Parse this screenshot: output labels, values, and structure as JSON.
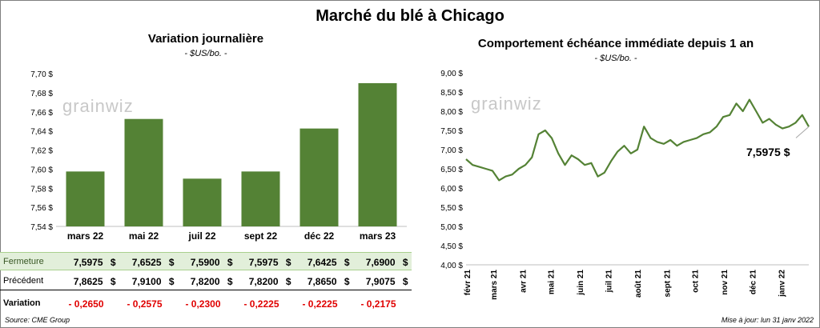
{
  "page": {
    "title": "Marché du blé à Chicago",
    "source": "Source: CME Group",
    "updated": "Mise à jour: lun 31 janv 2022"
  },
  "chart_data": [
    {
      "type": "bar",
      "title": "Variation  journalière",
      "subtitle": "- $US/bo. -",
      "watermark": "grainwiz",
      "categories": [
        "mars 22",
        "mai 22",
        "juil 22",
        "sept 22",
        "déc 22",
        "mars 23"
      ],
      "values": [
        7.5975,
        7.6525,
        7.59,
        7.5975,
        7.6425,
        7.69
      ],
      "ylim": [
        7.54,
        7.7
      ],
      "yticks": [
        "7,54 $",
        "7,56 $",
        "7,58 $",
        "7,60 $",
        "7,62 $",
        "7,64 $",
        "7,66 $",
        "7,68 $",
        "7,70 $"
      ],
      "bar_color": "#548235",
      "grid": false,
      "table": {
        "rows": [
          {
            "label": "Fermeture",
            "values": [
              "7,5975",
              "7,6525",
              "7,5900",
              "7,5975",
              "7,6425",
              "7,6900"
            ],
            "unit": "$"
          },
          {
            "label": "Précédent",
            "values": [
              "7,8625",
              "7,9100",
              "7,8200",
              "7,8200",
              "7,8650",
              "7,9075"
            ],
            "unit": "$"
          },
          {
            "label": "Variation",
            "values": [
              "- 0,2650",
              "- 0,2575",
              "- 0,2300",
              "- 0,2225",
              "- 0,2225",
              "- 0,2175"
            ]
          }
        ]
      }
    },
    {
      "type": "line",
      "title": "Comportement  échéance immédiate depuis 1 an",
      "subtitle": "- $US/bo. -",
      "watermark": "grainwiz",
      "ylim": [
        4.0,
        9.0
      ],
      "yticks": [
        "4,00 $",
        "4,50 $",
        "5,00 $",
        "5,50 $",
        "6,00 $",
        "6,50 $",
        "7,00 $",
        "7,50 $",
        "8,00 $",
        "8,50 $",
        "9,00 $"
      ],
      "xticks": [
        "févr 21",
        "mars 21",
        "avr 21",
        "mai 21",
        "juin 21",
        "juil 21",
        "août 21",
        "sept 21",
        "oct 21",
        "nov 21",
        "déc 21",
        "janv 22"
      ],
      "x_range": [
        "2021-02-01",
        "2022-01-31"
      ],
      "series": [
        {
          "color": "#548235",
          "x": [
            "2021-02-01",
            "2021-02-08",
            "2021-02-15",
            "2021-02-22",
            "2021-03-01",
            "2021-03-08",
            "2021-03-15",
            "2021-03-22",
            "2021-03-29",
            "2021-04-05",
            "2021-04-12",
            "2021-04-19",
            "2021-04-26",
            "2021-05-03",
            "2021-05-10",
            "2021-05-17",
            "2021-05-24",
            "2021-05-31",
            "2021-06-07",
            "2021-06-14",
            "2021-06-21",
            "2021-06-28",
            "2021-07-05",
            "2021-07-12",
            "2021-07-19",
            "2021-07-26",
            "2021-08-02",
            "2021-08-09",
            "2021-08-16",
            "2021-08-23",
            "2021-08-30",
            "2021-09-06",
            "2021-09-13",
            "2021-09-20",
            "2021-09-27",
            "2021-10-04",
            "2021-10-11",
            "2021-10-18",
            "2021-10-25",
            "2021-11-01",
            "2021-11-08",
            "2021-11-15",
            "2021-11-22",
            "2021-11-29",
            "2021-12-06",
            "2021-12-13",
            "2021-12-20",
            "2021-12-27",
            "2022-01-03",
            "2022-01-10",
            "2022-01-17",
            "2022-01-24",
            "2022-01-31"
          ],
          "values": [
            6.75,
            6.6,
            6.55,
            6.5,
            6.45,
            6.2,
            6.3,
            6.35,
            6.5,
            6.6,
            6.8,
            7.4,
            7.5,
            7.3,
            6.9,
            6.6,
            6.85,
            6.75,
            6.6,
            6.65,
            6.3,
            6.4,
            6.7,
            6.95,
            7.1,
            6.9,
            7.0,
            7.6,
            7.3,
            7.2,
            7.15,
            7.25,
            7.1,
            7.2,
            7.25,
            7.3,
            7.4,
            7.45,
            7.6,
            7.85,
            7.9,
            8.2,
            8.0,
            8.3,
            8.0,
            7.7,
            7.8,
            7.65,
            7.55,
            7.6,
            7.7,
            7.9,
            7.5975
          ]
        }
      ],
      "last_value_label": "7,5975 $"
    }
  ]
}
